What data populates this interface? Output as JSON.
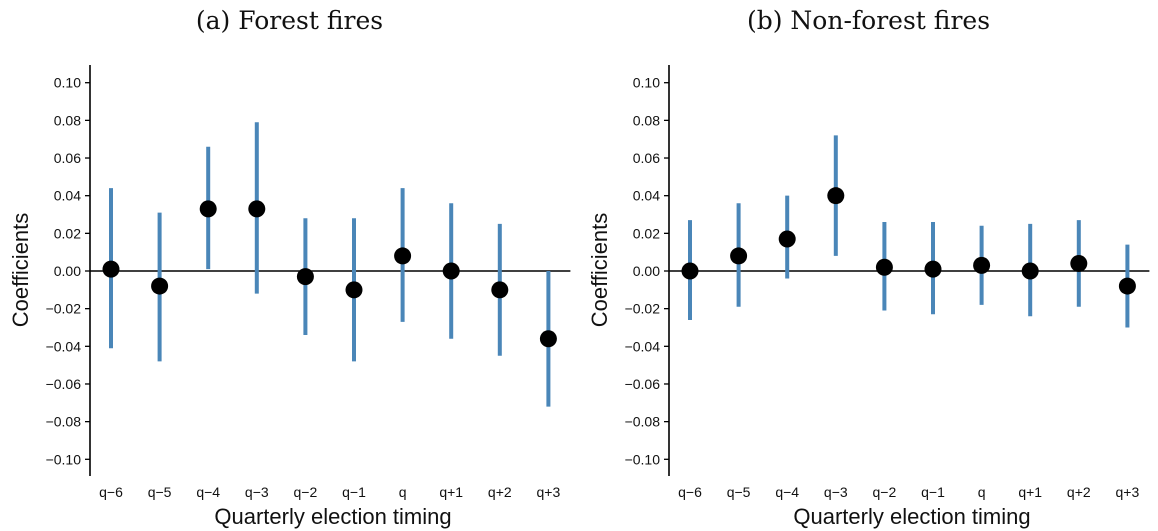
{
  "chart_data": [
    {
      "type": "scatter",
      "title": "(a) Forest fires",
      "xlabel": "Quarterly election timing",
      "ylabel": "Coefficients",
      "categories": [
        "q−6",
        "q−5",
        "q−4",
        "q−3",
        "q−2",
        "q−1",
        "q",
        "q+1",
        "q+2",
        "q+3"
      ],
      "yticks": [
        "0.10",
        "0.08",
        "0.06",
        "0.04",
        "0.02",
        "0.00",
        "−0.02",
        "−0.04",
        "−0.06",
        "−0.08",
        "−0.10"
      ],
      "ylim": [
        -0.11,
        0.11
      ],
      "estimate": [
        0.001,
        -0.008,
        0.033,
        0.033,
        -0.003,
        -0.01,
        0.008,
        0.0,
        -0.01,
        -0.036
      ],
      "ci_low": [
        -0.041,
        -0.048,
        0.001,
        -0.012,
        -0.034,
        -0.048,
        -0.027,
        -0.036,
        -0.045,
        -0.072
      ],
      "ci_high": [
        0.044,
        0.031,
        0.066,
        0.079,
        0.028,
        0.028,
        0.044,
        0.036,
        0.025,
        0.0
      ],
      "reference_line": 0,
      "colors": {
        "ci": "#4a86b8",
        "point": "#000000",
        "axis": "#000000"
      },
      "grid": false
    },
    {
      "type": "scatter",
      "title": "(b) Non-forest fires",
      "xlabel": "Quarterly election timing",
      "ylabel": "Coefficients",
      "categories": [
        "q−6",
        "q−5",
        "q−4",
        "q−3",
        "q−2",
        "q−1",
        "q",
        "q+1",
        "q+2",
        "q+3"
      ],
      "yticks": [
        "0.10",
        "0.08",
        "0.06",
        "0.04",
        "0.02",
        "0.00",
        "−0.02",
        "−0.04",
        "−0.06",
        "−0.08",
        "−0.10"
      ],
      "ylim": [
        -0.11,
        0.11
      ],
      "estimate": [
        0.0,
        0.008,
        0.017,
        0.04,
        0.002,
        0.001,
        0.003,
        0.0,
        0.004,
        -0.008
      ],
      "ci_low": [
        -0.026,
        -0.019,
        -0.004,
        0.008,
        -0.021,
        -0.023,
        -0.018,
        -0.024,
        -0.019,
        -0.03
      ],
      "ci_high": [
        0.027,
        0.036,
        0.04,
        0.072,
        0.026,
        0.026,
        0.024,
        0.025,
        0.027,
        0.014
      ],
      "reference_line": 0,
      "colors": {
        "ci": "#4a86b8",
        "point": "#000000",
        "axis": "#000000"
      },
      "grid": false
    }
  ]
}
